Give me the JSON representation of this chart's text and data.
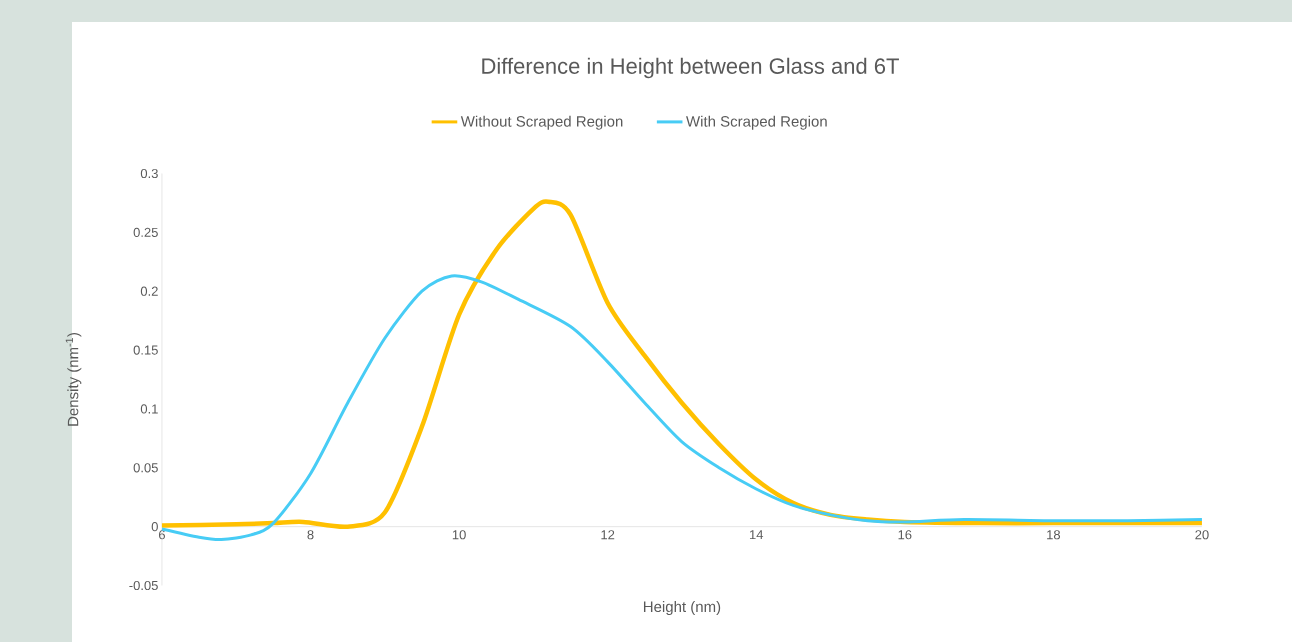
{
  "chart_data": {
    "type": "line",
    "title": "Difference in Height between Glass and 6T",
    "xlabel": "Height (nm)",
    "ylabel": "Density (nm$^{-1}$)",
    "xlim": [
      6,
      20
    ],
    "xticks": [
      6,
      8,
      10,
      12,
      14,
      16,
      18,
      20
    ],
    "ylim": [
      -0.05,
      0.3
    ],
    "yticks": [
      -0.05,
      0,
      0.05,
      0.1,
      0.15,
      0.2,
      0.25,
      0.3
    ],
    "grid": false,
    "legend": "top",
    "marker": "none",
    "line_style": "solid",
    "series": [
      {
        "name": "Without Scraped Region",
        "color": "#ffc000",
        "x": [
          6,
          7,
          7.5,
          7.9,
          8.5,
          9,
          9.5,
          10,
          10.5,
          11,
          11.2,
          11.5,
          12,
          12.5,
          13,
          13.5,
          14,
          14.5,
          15,
          15.5,
          16,
          17,
          18,
          19,
          20
        ],
        "values": [
          0.001,
          0.002,
          0.003,
          0.004,
          0.0,
          0.012,
          0.085,
          0.18,
          0.235,
          0.27,
          0.276,
          0.265,
          0.19,
          0.145,
          0.105,
          0.07,
          0.04,
          0.02,
          0.01,
          0.006,
          0.004,
          0.003,
          0.003,
          0.003,
          0.003
        ]
      },
      {
        "name": "With Scraped Region",
        "color": "#47ccf5",
        "x": [
          6,
          6.5,
          6.8,
          7.2,
          7.5,
          8,
          8.5,
          9,
          9.5,
          9.9,
          10.3,
          10.8,
          11.5,
          12,
          12.5,
          13,
          13.5,
          14,
          14.5,
          15,
          15.5,
          16,
          16.8,
          18,
          19,
          20
        ],
        "values": [
          -0.002,
          -0.009,
          -0.011,
          -0.007,
          0.003,
          0.045,
          0.105,
          0.16,
          0.2,
          0.213,
          0.208,
          0.193,
          0.17,
          0.14,
          0.105,
          0.072,
          0.05,
          0.032,
          0.018,
          0.01,
          0.005,
          0.004,
          0.006,
          0.005,
          0.005,
          0.006
        ]
      }
    ]
  }
}
